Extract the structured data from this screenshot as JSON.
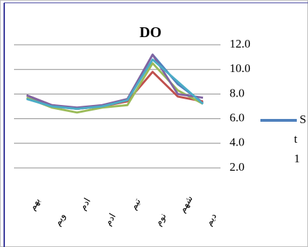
{
  "chart_data": {
    "type": "line",
    "title": "DO",
    "categories": [
      "بهم",
      "ویم",
      "ادم",
      "ادم",
      "تیم",
      "نوم",
      "شهم",
      "دیم"
    ],
    "series": [
      {
        "name": "S t 1",
        "color": "#4f81bd",
        "values": [
          7.7,
          7.0,
          6.8,
          7.0,
          7.5,
          11.2,
          8.8,
          7.3
        ]
      },
      {
        "color": "#c0504d",
        "values": [
          7.9,
          7.1,
          6.8,
          7.0,
          7.4,
          9.8,
          7.8,
          7.4
        ]
      },
      {
        "color": "#9bbb59",
        "values": [
          7.7,
          6.9,
          6.5,
          6.9,
          7.1,
          10.5,
          8.3,
          7.2
        ]
      },
      {
        "color": "#8064a2",
        "values": [
          7.9,
          7.1,
          6.9,
          7.1,
          7.6,
          11.2,
          8.0,
          7.7
        ]
      },
      {
        "color": "#4bacc6",
        "values": [
          7.6,
          7.0,
          6.8,
          7.0,
          7.5,
          10.8,
          9.0,
          7.2
        ]
      }
    ],
    "ylim": [
      2,
      12
    ],
    "yticks": [
      {
        "value": 2,
        "label": "2.0"
      },
      {
        "value": 4,
        "label": "4.0"
      },
      {
        "value": 6,
        "label": "6.0"
      },
      {
        "value": 8,
        "label": "8.0"
      },
      {
        "value": 10,
        "label": "10.0"
      },
      {
        "value": 12,
        "label": "12.0"
      }
    ],
    "grid": true
  }
}
